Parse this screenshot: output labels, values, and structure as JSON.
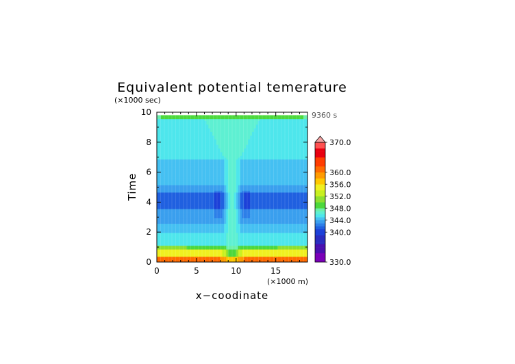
{
  "chart_data": {
    "type": "heatmap",
    "title": "Equivalent potential temerature",
    "xlabel": "x−coodinate",
    "ylabel": "Time",
    "x_unit_label": "(×1000 m)",
    "y_unit_label": "(×1000 sec)",
    "time_stamp": "9360 s",
    "xlim": [
      0,
      19
    ],
    "ylim": [
      0,
      9.8
    ],
    "xticks": [
      "0",
      "5",
      "10",
      "15"
    ],
    "yticks": [
      "0",
      "2",
      "4",
      "6",
      "8",
      "10"
    ],
    "colorbar": {
      "min": 330,
      "max": 370,
      "overflow_arrow": "top",
      "tick_labels": [
        "370.0",
        "360.0",
        "356.0",
        "352.0",
        "348.0",
        "344.0",
        "340.0",
        "330.0"
      ]
    },
    "field_description_levels": [
      {
        "time_range": [
          0,
          0.3
        ],
        "value_range": [
          358,
          364
        ]
      },
      {
        "time_range": [
          0.3,
          1.0
        ],
        "value_range": [
          350,
          356
        ]
      },
      {
        "time_range": [
          1.0,
          2.6
        ],
        "value_range": [
          344,
          346
        ]
      },
      {
        "time_range": [
          2.6,
          3.6
        ],
        "value_range": [
          342,
          344
        ]
      },
      {
        "time_range": [
          3.6,
          4.6
        ],
        "value_range": [
          340,
          342
        ]
      },
      {
        "time_range": [
          4.6,
          7.2
        ],
        "value_range": [
          344,
          346
        ]
      },
      {
        "time_range": [
          7.2,
          9.6
        ],
        "value_range": [
          345,
          347
        ]
      },
      {
        "time_range": [
          9.6,
          9.8
        ],
        "value_range": [
          347,
          349
        ]
      }
    ]
  }
}
